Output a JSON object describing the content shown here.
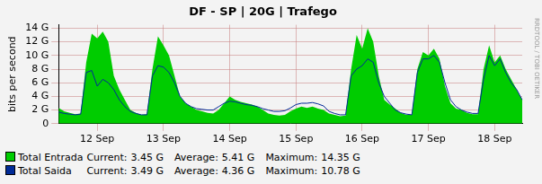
{
  "chart_data": {
    "type": "line",
    "title": "DF - SP | 20G | Trafego",
    "y_label": "bits per second",
    "annotation": "RRDTOOL / TOBI OETIKER",
    "unit": "G",
    "stat_labels": [
      "Current:",
      "Average:",
      "Maximum:"
    ],
    "grid": true,
    "ylim": [
      0,
      14.5
    ],
    "yticks": [
      0,
      {
        "value": 2,
        "label": "2 G"
      },
      {
        "value": 4,
        "label": "4 G"
      },
      {
        "value": 6,
        "label": "6 G"
      },
      {
        "value": 8,
        "label": "8 G"
      },
      {
        "value": 10,
        "label": "10 G"
      },
      {
        "value": 12,
        "label": "12 G"
      },
      {
        "value": 14,
        "label": "14 G"
      }
    ],
    "categories": [
      null,
      null,
      null,
      null,
      null,
      null,
      null,
      "12 Sep",
      null,
      null,
      null,
      null,
      null,
      null,
      null,
      null,
      null,
      null,
      null,
      "13 Sep",
      null,
      null,
      null,
      null,
      null,
      null,
      null,
      null,
      null,
      null,
      null,
      "14 Sep",
      null,
      null,
      null,
      null,
      null,
      null,
      null,
      null,
      null,
      null,
      null,
      "15 Sep",
      null,
      null,
      null,
      null,
      null,
      null,
      null,
      null,
      null,
      null,
      null,
      "16 Sep",
      null,
      null,
      null,
      null,
      null,
      null,
      null,
      null,
      null,
      null,
      null,
      "17 Sep",
      null,
      null,
      null,
      null,
      null,
      null,
      null,
      null,
      null,
      null,
      null,
      "18 Sep",
      null,
      null,
      null,
      null,
      null
    ],
    "series": [
      {
        "name": "Total Entrada",
        "type": "area",
        "color": "#00cc00",
        "current": 3.45,
        "average": 5.41,
        "maximum": 14.35,
        "values": [
          2.3,
          1.8,
          1.6,
          1.4,
          1.5,
          9,
          13.2,
          12.5,
          13.5,
          12,
          7,
          5,
          3.5,
          2,
          1.6,
          1.3,
          1.4,
          8,
          12.8,
          11.5,
          10,
          7,
          4,
          3,
          2.5,
          2,
          1.8,
          1.6,
          1.5,
          2,
          3,
          4,
          3.5,
          3.2,
          3,
          2.8,
          2.5,
          2,
          1.5,
          1.3,
          1.2,
          1.3,
          1.8,
          2.2,
          2.5,
          2.3,
          2.5,
          2.2,
          2,
          1.5,
          1.3,
          1.1,
          1.2,
          8,
          13,
          11,
          14,
          12,
          7,
          3.5,
          2.8,
          2.2,
          1.6,
          1.3,
          1.3,
          8,
          10.5,
          10,
          11,
          9.5,
          5.5,
          3,
          2.2,
          2,
          1.6,
          1.4,
          1.4,
          8,
          11.5,
          9,
          10,
          8,
          6.5,
          5,
          3.45
        ]
      },
      {
        "name": "Total Saida",
        "type": "line",
        "color": "#002a97",
        "current": 3.49,
        "average": 4.36,
        "maximum": 10.78,
        "values": [
          1.7,
          1.5,
          1.4,
          1.3,
          1.4,
          7.5,
          7.8,
          5.5,
          6.5,
          6,
          5,
          3.5,
          2.5,
          1.8,
          1.5,
          1.3,
          1.3,
          7,
          8.5,
          8.3,
          7.5,
          6,
          4,
          3,
          2.5,
          2.2,
          2.1,
          2,
          2,
          2.5,
          3,
          3.3,
          3.2,
          3,
          2.8,
          2.7,
          2.5,
          2.2,
          2,
          1.8,
          1.8,
          1.9,
          2.3,
          2.8,
          3,
          3,
          3.1,
          2.9,
          2.6,
          1.8,
          1.5,
          1.3,
          1.3,
          7,
          8,
          8.5,
          9.5,
          9,
          6,
          4,
          3,
          2,
          1.6,
          1.4,
          1.3,
          7.5,
          9.5,
          9.5,
          10,
          9,
          6,
          3.5,
          2.5,
          2,
          1.7,
          1.5,
          1.5,
          6.5,
          10,
          8.5,
          9.5,
          7.5,
          6,
          5,
          3.49
        ]
      }
    ]
  }
}
